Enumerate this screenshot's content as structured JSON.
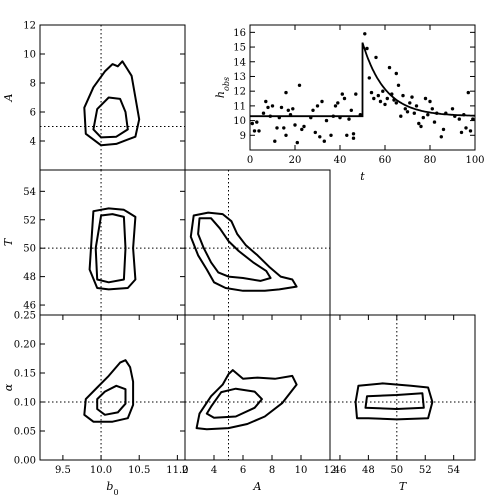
{
  "chart_data": [
    {
      "type": "contour",
      "id": "b0_A",
      "xlabel": "",
      "ylabel": "A",
      "xlim": [
        9.2,
        11.1
      ],
      "ylim": [
        2,
        12
      ],
      "xticks": [],
      "yticks": [
        4,
        6,
        8,
        10,
        12
      ],
      "truth": {
        "x": 10.0,
        "y": 5.0
      },
      "contours": [
        [
          [
            10.0,
            4.25
          ],
          [
            9.9,
            4.8
          ],
          [
            9.95,
            6.2
          ],
          [
            10.1,
            7.0
          ],
          [
            10.25,
            6.9
          ],
          [
            10.32,
            6.0
          ],
          [
            10.35,
            4.8
          ],
          [
            10.2,
            4.3
          ],
          [
            10.0,
            4.25
          ]
        ],
        [
          [
            10.0,
            3.7
          ],
          [
            9.8,
            4.5
          ],
          [
            9.78,
            6.3
          ],
          [
            9.9,
            7.7
          ],
          [
            10.05,
            8.8
          ],
          [
            10.15,
            9.3
          ],
          [
            10.22,
            9.15
          ],
          [
            10.28,
            9.5
          ],
          [
            10.34,
            9.0
          ],
          [
            10.4,
            8.5
          ],
          [
            10.45,
            7.0
          ],
          [
            10.5,
            5.5
          ],
          [
            10.45,
            4.3
          ],
          [
            10.2,
            3.8
          ],
          [
            10.0,
            3.7
          ]
        ]
      ]
    },
    {
      "type": "contour",
      "id": "b0_T",
      "xlabel": "",
      "ylabel": "T",
      "xlim": [
        9.2,
        11.1
      ],
      "ylim": [
        45.3,
        55.5
      ],
      "xticks": [],
      "yticks": [
        46,
        48,
        50,
        52,
        54
      ],
      "truth": {
        "x": 10.0,
        "y": 50.0
      },
      "contours": [
        [
          [
            9.95,
            47.8
          ],
          [
            9.93,
            50.0
          ],
          [
            10.0,
            52.3
          ],
          [
            10.15,
            52.4
          ],
          [
            10.3,
            52.2
          ],
          [
            10.32,
            50.0
          ],
          [
            10.3,
            47.8
          ],
          [
            10.1,
            47.6
          ],
          [
            9.95,
            47.8
          ]
        ],
        [
          [
            9.95,
            47.2
          ],
          [
            9.85,
            48.5
          ],
          [
            9.88,
            51.0
          ],
          [
            9.9,
            52.6
          ],
          [
            10.1,
            52.8
          ],
          [
            10.3,
            52.7
          ],
          [
            10.45,
            52.2
          ],
          [
            10.42,
            50.0
          ],
          [
            10.45,
            47.8
          ],
          [
            10.35,
            47.2
          ],
          [
            10.1,
            47.1
          ],
          [
            9.95,
            47.2
          ]
        ]
      ]
    },
    {
      "type": "contour",
      "id": "A_T",
      "xlabel": "",
      "ylabel": "",
      "xlim": [
        2,
        12
      ],
      "ylim": [
        45.3,
        55.5
      ],
      "xticks": [],
      "yticks": [],
      "truth": {
        "x": 5.0,
        "y": 50.0
      },
      "contours": [
        [
          [
            3.0,
            52.1
          ],
          [
            2.9,
            51.0
          ],
          [
            3.3,
            50.0
          ],
          [
            3.8,
            49.0
          ],
          [
            4.3,
            48.3
          ],
          [
            5.0,
            48.0
          ],
          [
            6.0,
            47.9
          ],
          [
            7.2,
            47.7
          ],
          [
            7.9,
            47.9
          ],
          [
            7.6,
            48.4
          ],
          [
            6.7,
            49.0
          ],
          [
            5.7,
            49.8
          ],
          [
            5.0,
            50.5
          ],
          [
            4.4,
            51.4
          ],
          [
            3.8,
            52.1
          ],
          [
            3.0,
            52.1
          ]
        ],
        [
          [
            2.6,
            52.3
          ],
          [
            2.4,
            50.8
          ],
          [
            2.9,
            49.5
          ],
          [
            3.5,
            48.5
          ],
          [
            4.0,
            47.6
          ],
          [
            4.8,
            47.2
          ],
          [
            6.0,
            47.0
          ],
          [
            7.5,
            47.0
          ],
          [
            8.5,
            47.1
          ],
          [
            9.7,
            47.3
          ],
          [
            9.4,
            47.8
          ],
          [
            8.6,
            48.0
          ],
          [
            7.8,
            48.7
          ],
          [
            7.0,
            49.5
          ],
          [
            6.2,
            50.2
          ],
          [
            5.6,
            51.0
          ],
          [
            5.2,
            51.9
          ],
          [
            4.6,
            52.4
          ],
          [
            3.6,
            52.5
          ],
          [
            2.6,
            52.3
          ]
        ]
      ]
    },
    {
      "type": "contour",
      "id": "b0_alpha",
      "xlabel": "b0",
      "ylabel": "α",
      "xlim": [
        9.2,
        11.1
      ],
      "ylim": [
        0,
        0.25
      ],
      "xticks": [
        9.5,
        10.0,
        10.5,
        11.0
      ],
      "yticks": [
        0.0,
        0.05,
        0.1,
        0.15,
        0.2,
        0.25
      ],
      "truth": {
        "x": 10.0,
        "y": 0.1
      },
      "contours": [
        [
          [
            9.95,
            0.088
          ],
          [
            9.95,
            0.105
          ],
          [
            10.05,
            0.118
          ],
          [
            10.2,
            0.128
          ],
          [
            10.32,
            0.122
          ],
          [
            10.32,
            0.097
          ],
          [
            10.22,
            0.082
          ],
          [
            10.05,
            0.078
          ],
          [
            9.95,
            0.088
          ]
        ],
        [
          [
            9.78,
            0.078
          ],
          [
            9.8,
            0.105
          ],
          [
            9.95,
            0.125
          ],
          [
            10.1,
            0.145
          ],
          [
            10.25,
            0.168
          ],
          [
            10.32,
            0.172
          ],
          [
            10.38,
            0.16
          ],
          [
            10.42,
            0.135
          ],
          [
            10.42,
            0.095
          ],
          [
            10.35,
            0.072
          ],
          [
            10.15,
            0.066
          ],
          [
            9.9,
            0.066
          ],
          [
            9.78,
            0.078
          ]
        ]
      ]
    },
    {
      "type": "contour",
      "id": "A_alpha",
      "xlabel": "A",
      "ylabel": "",
      "xlim": [
        2,
        12
      ],
      "ylim": [
        0,
        0.25
      ],
      "xticks": [
        2,
        4,
        6,
        8,
        10,
        12
      ],
      "yticks": [],
      "truth": {
        "x": 5.0,
        "y": 0.1
      },
      "contours": [
        [
          [
            3.8,
            0.092
          ],
          [
            3.5,
            0.08
          ],
          [
            4.0,
            0.073
          ],
          [
            5.5,
            0.075
          ],
          [
            6.8,
            0.09
          ],
          [
            7.3,
            0.105
          ],
          [
            6.8,
            0.118
          ],
          [
            5.5,
            0.123
          ],
          [
            4.5,
            0.117
          ],
          [
            3.8,
            0.092
          ]
        ],
        [
          [
            3.0,
            0.08
          ],
          [
            2.8,
            0.055
          ],
          [
            3.5,
            0.053
          ],
          [
            5.0,
            0.055
          ],
          [
            6.3,
            0.062
          ],
          [
            7.5,
            0.075
          ],
          [
            8.7,
            0.098
          ],
          [
            9.7,
            0.13
          ],
          [
            9.4,
            0.145
          ],
          [
            8.2,
            0.14
          ],
          [
            7.0,
            0.142
          ],
          [
            6.0,
            0.14
          ],
          [
            5.3,
            0.155
          ],
          [
            5.0,
            0.148
          ],
          [
            4.6,
            0.13
          ],
          [
            3.8,
            0.11
          ],
          [
            3.0,
            0.08
          ]
        ]
      ]
    },
    {
      "type": "contour",
      "id": "T_alpha",
      "xlabel": "T",
      "ylabel": "",
      "xlim": [
        45.3,
        55.5
      ],
      "ylim": [
        0,
        0.25
      ],
      "xticks": [
        46,
        48,
        50,
        52,
        54
      ],
      "yticks": [],
      "truth": {
        "x": 50.0,
        "y": 0.1
      },
      "contours": [
        [
          [
            47.8,
            0.09
          ],
          [
            47.9,
            0.11
          ],
          [
            50.0,
            0.112
          ],
          [
            51.8,
            0.115
          ],
          [
            51.9,
            0.09
          ],
          [
            50.0,
            0.088
          ],
          [
            47.8,
            0.09
          ]
        ],
        [
          [
            47.2,
            0.072
          ],
          [
            47.1,
            0.1
          ],
          [
            47.3,
            0.128
          ],
          [
            49.0,
            0.132
          ],
          [
            51.0,
            0.128
          ],
          [
            52.2,
            0.125
          ],
          [
            52.5,
            0.1
          ],
          [
            52.2,
            0.072
          ],
          [
            50.0,
            0.07
          ],
          [
            48.0,
            0.072
          ],
          [
            47.2,
            0.072
          ]
        ]
      ]
    },
    {
      "type": "scatter",
      "id": "data_fit",
      "xlabel": "t",
      "ylabel": "h_obs",
      "xlim": [
        0,
        100
      ],
      "ylim": [
        8,
        16.5
      ],
      "xticks": [
        0,
        20,
        40,
        60,
        80,
        100
      ],
      "yticks": [
        9,
        10,
        11,
        12,
        13,
        14,
        15,
        16
      ],
      "model": {
        "b0": 10.3,
        "A": 5.0,
        "T": 50,
        "alpha": 0.1
      },
      "points": [
        [
          1,
          9.8
        ],
        [
          2,
          9.3
        ],
        [
          3,
          9.9
        ],
        [
          4,
          9.3
        ],
        [
          6,
          10.5
        ],
        [
          7,
          11.3
        ],
        [
          8,
          10.9
        ],
        [
          9,
          10.3
        ],
        [
          10,
          11.0
        ],
        [
          11,
          8.6
        ],
        [
          12,
          9.5
        ],
        [
          13,
          10.2
        ],
        [
          14,
          10.9
        ],
        [
          15,
          9.5
        ],
        [
          16,
          9.0
        ],
        [
          16,
          11.9
        ],
        [
          17,
          10.7
        ],
        [
          18,
          10.4
        ],
        [
          19,
          10.8
        ],
        [
          20,
          9.7
        ],
        [
          21,
          8.5
        ],
        [
          22,
          12.4
        ],
        [
          23,
          9.4
        ],
        [
          24,
          9.6
        ],
        [
          27,
          10.2
        ],
        [
          28,
          10.7
        ],
        [
          29,
          9.2
        ],
        [
          30,
          11.0
        ],
        [
          31,
          8.9
        ],
        [
          32,
          11.3
        ],
        [
          33,
          8.6
        ],
        [
          34,
          10.0
        ],
        [
          36,
          9.0
        ],
        [
          37,
          10.3
        ],
        [
          38,
          11.0
        ],
        [
          39,
          11.2
        ],
        [
          40,
          10.2
        ],
        [
          41,
          11.8
        ],
        [
          42,
          11.5
        ],
        [
          43,
          9.0
        ],
        [
          44,
          10.1
        ],
        [
          45,
          10.7
        ],
        [
          46,
          9.1
        ],
        [
          46,
          8.8
        ],
        [
          47,
          11.8
        ],
        [
          49,
          10.4
        ],
        [
          51,
          15.9
        ],
        [
          52,
          14.9
        ],
        [
          53,
          12.9
        ],
        [
          54,
          11.9
        ],
        [
          55,
          11.5
        ],
        [
          56,
          14.3
        ],
        [
          57,
          11.7
        ],
        [
          58,
          11.3
        ],
        [
          59,
          12.0
        ],
        [
          60,
          11.1
        ],
        [
          61,
          11.5
        ],
        [
          62,
          13.6
        ],
        [
          63,
          11.8
        ],
        [
          64,
          11.4
        ],
        [
          65,
          13.2
        ],
        [
          65,
          11.2
        ],
        [
          66,
          12.4
        ],
        [
          67,
          10.3
        ],
        [
          68,
          11.7
        ],
        [
          69,
          10.8
        ],
        [
          70,
          10.6
        ],
        [
          71,
          11.2
        ],
        [
          72,
          11.6
        ],
        [
          73,
          10.5
        ],
        [
          74,
          11.0
        ],
        [
          75,
          9.8
        ],
        [
          76,
          9.6
        ],
        [
          77,
          10.2
        ],
        [
          78,
          11.5
        ],
        [
          79,
          10.4
        ],
        [
          80,
          11.3
        ],
        [
          81,
          10.8
        ],
        [
          82,
          9.9
        ],
        [
          83,
          10.5
        ],
        [
          85,
          8.9
        ],
        [
          86,
          9.4
        ],
        [
          87,
          10.5
        ],
        [
          90,
          10.8
        ],
        [
          91,
          10.3
        ],
        [
          93,
          10.1
        ],
        [
          94,
          9.2
        ],
        [
          95,
          10.4
        ],
        [
          96,
          9.5
        ],
        [
          97,
          11.9
        ],
        [
          98,
          9.3
        ],
        [
          99,
          10.1
        ]
      ]
    }
  ]
}
